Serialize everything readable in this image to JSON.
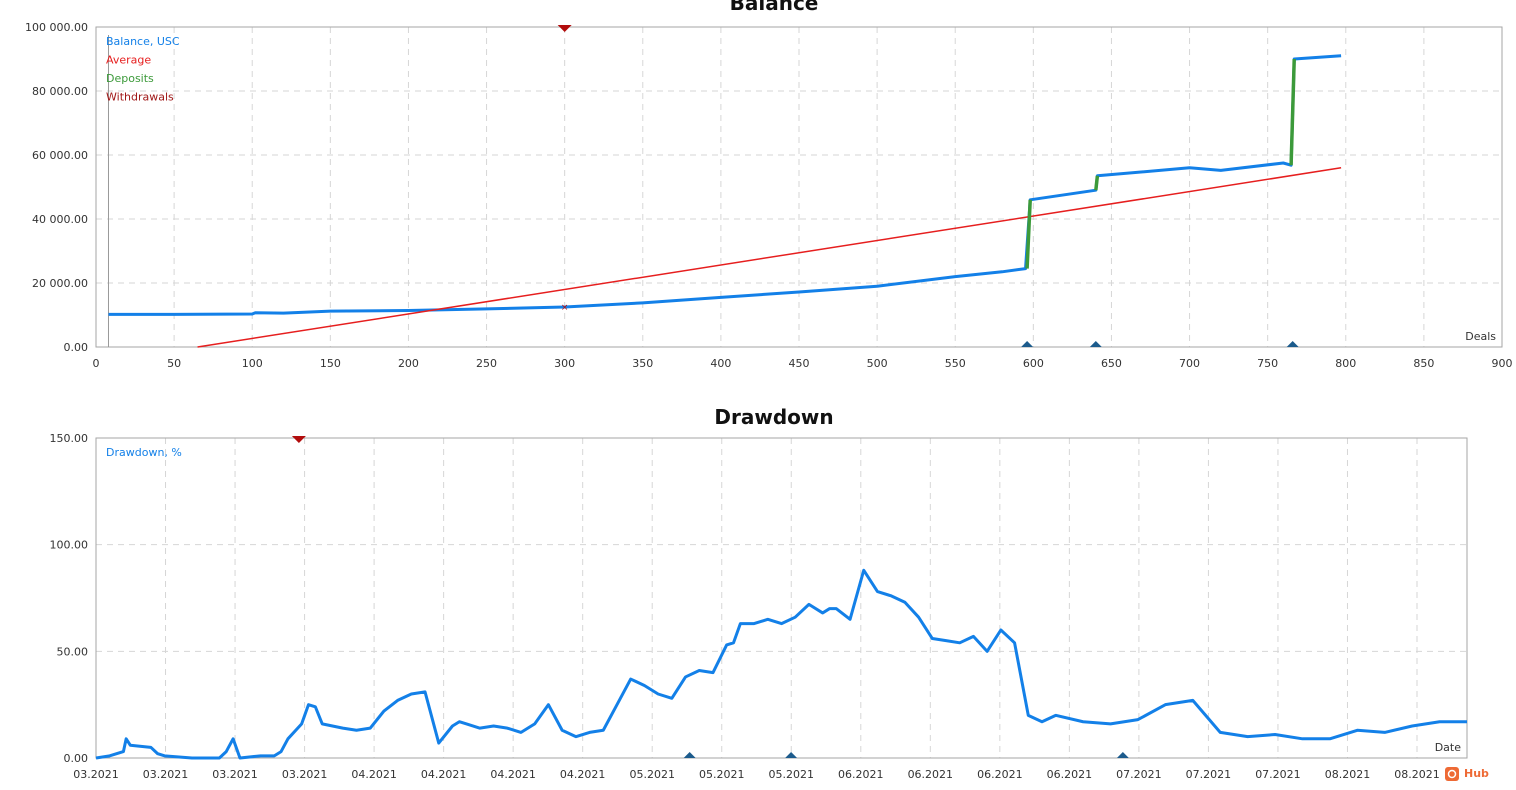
{
  "colors": {
    "balance": "#1380e8",
    "average": "#e61e1e",
    "deposits": "#3c9a3a",
    "withdrawals": "#a01818",
    "marker_deposit": "#1c5b8c",
    "marker_withdrawal": "#b20c0c"
  },
  "watermark": "Hub",
  "chart_data": [
    {
      "type": "line",
      "title": "Balance",
      "xlabel": "Deals",
      "ylabel": "",
      "xlim": [
        0,
        900
      ],
      "ylim": [
        0,
        100000
      ],
      "x_ticks": [
        0,
        50,
        100,
        150,
        200,
        250,
        300,
        350,
        400,
        450,
        500,
        550,
        600,
        650,
        700,
        750,
        800,
        850,
        900
      ],
      "x_tick_labels": [
        "0",
        "50",
        "100",
        "150",
        "200",
        "250",
        "300",
        "350",
        "400",
        "450",
        "500",
        "550",
        "600",
        "650",
        "700",
        "750",
        "800",
        "850",
        "900"
      ],
      "y_ticks": [
        0,
        20000,
        40000,
        60000,
        80000,
        100000
      ],
      "y_tick_labels": [
        "0.00",
        "20 000.00",
        "40 000.00",
        "60 000.00",
        "80 000.00",
        "100 000.00"
      ],
      "grid": true,
      "legend": {
        "position": "top-left",
        "entries": [
          "Balance, USC",
          "Average",
          "Deposits",
          "Withdrawals"
        ]
      },
      "series": [
        {
          "name": "Balance, USC",
          "x": [
            8,
            50,
            100,
            102,
            120,
            150,
            200,
            250,
            300,
            350,
            400,
            450,
            500,
            550,
            580,
            595,
            598,
            640,
            641,
            700,
            720,
            760,
            765,
            767,
            797
          ],
          "y": [
            10200,
            10200,
            10300,
            10700,
            10600,
            11200,
            11400,
            11900,
            12500,
            13800,
            15500,
            17200,
            19000,
            22000,
            23500,
            24500,
            46000,
            49000,
            53500,
            56000,
            55200,
            57500,
            56800,
            90000,
            91000
          ]
        },
        {
          "name": "Average",
          "x": [
            65,
            797
          ],
          "y": [
            0,
            56000
          ]
        },
        {
          "name": "Deposits",
          "segments": [
            {
              "x": [
                596,
                598
              ],
              "y": [
                24500,
                46000
              ]
            },
            {
              "x": [
                640,
                641
              ],
              "y": [
                49000,
                53500
              ]
            },
            {
              "x": [
                765,
                767
              ],
              "y": [
                56800,
                90000
              ]
            }
          ]
        }
      ],
      "markers": {
        "deposits": [
          596,
          640,
          766
        ],
        "withdrawals": [
          300
        ]
      }
    },
    {
      "type": "line",
      "title": "Drawdown",
      "xlabel": "Date",
      "ylabel": "",
      "xlim": [
        0,
        1
      ],
      "ylim": [
        0,
        150
      ],
      "x_tick_labels": [
        "03.2021",
        "03.2021",
        "03.2021",
        "03.2021",
        "04.2021",
        "04.2021",
        "04.2021",
        "04.2021",
        "05.2021",
        "05.2021",
        "05.2021",
        "06.2021",
        "06.2021",
        "06.2021",
        "06.2021",
        "07.2021",
        "07.2021",
        "07.2021",
        "08.2021",
        "08.2021"
      ],
      "y_ticks": [
        0,
        50,
        100,
        150
      ],
      "y_tick_labels": [
        "0.00",
        "50.00",
        "100.00",
        "150.00"
      ],
      "grid": true,
      "legend": {
        "position": "top-left",
        "entries": [
          "Drawdown, %"
        ]
      },
      "series": [
        {
          "name": "Drawdown, %",
          "x": [
            0,
            0.01,
            0.02,
            0.022,
            0.025,
            0.04,
            0.045,
            0.05,
            0.07,
            0.09,
            0.095,
            0.1,
            0.105,
            0.12,
            0.13,
            0.135,
            0.14,
            0.15,
            0.155,
            0.16,
            0.165,
            0.18,
            0.19,
            0.2,
            0.21,
            0.22,
            0.23,
            0.24,
            0.25,
            0.26,
            0.265,
            0.27,
            0.28,
            0.29,
            0.3,
            0.31,
            0.32,
            0.33,
            0.34,
            0.35,
            0.36,
            0.37,
            0.38,
            0.39,
            0.4,
            0.41,
            0.42,
            0.43,
            0.44,
            0.45,
            0.46,
            0.465,
            0.47,
            0.48,
            0.49,
            0.5,
            0.51,
            0.52,
            0.53,
            0.535,
            0.54,
            0.55,
            0.56,
            0.57,
            0.58,
            0.59,
            0.6,
            0.61,
            0.62,
            0.63,
            0.64,
            0.65,
            0.66,
            0.67,
            0.68,
            0.69,
            0.7,
            0.72,
            0.74,
            0.76,
            0.78,
            0.8,
            0.82,
            0.84,
            0.86,
            0.88,
            0.9,
            0.92,
            0.94,
            0.96,
            0.98,
            1.0
          ],
          "y": [
            0,
            1,
            3,
            9,
            6,
            5,
            2,
            1,
            0,
            0,
            3,
            9,
            0,
            1,
            1,
            3,
            9,
            16,
            25,
            24,
            16,
            14,
            13,
            14,
            22,
            27,
            30,
            31,
            7,
            15,
            17,
            16,
            14,
            15,
            14,
            12,
            16,
            25,
            13,
            10,
            12,
            13,
            25,
            37,
            34,
            30,
            28,
            38,
            41,
            40,
            53,
            54,
            63,
            63,
            65,
            63,
            66,
            72,
            68,
            70,
            70,
            65,
            88,
            78,
            76,
            73,
            66,
            56,
            55,
            54,
            57,
            50,
            60,
            54,
            20,
            17,
            20,
            17,
            16,
            18,
            25,
            27,
            12,
            10,
            11,
            9,
            9,
            13,
            12,
            15,
            17,
            17
          ]
        }
      ],
      "markers": {
        "deposits": [
          0.433,
          0.507,
          0.749
        ],
        "withdrawals": [
          0.148
        ]
      }
    }
  ]
}
